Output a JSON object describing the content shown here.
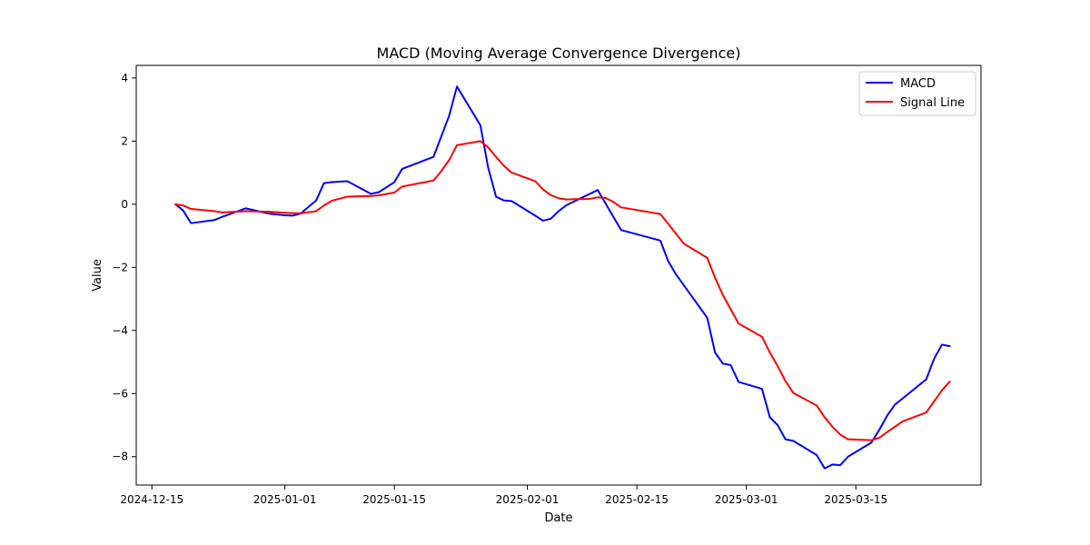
{
  "chart_data": {
    "type": "line",
    "title": "MACD (Moving Average Convergence Divergence)",
    "xlabel": "Date",
    "ylabel": "Value",
    "xlim": [
      "2024-12-13",
      "2025-03-31"
    ],
    "ylim": [
      -8.9,
      4.4
    ],
    "x_ticks": [
      "2024-12-15",
      "2025-01-01",
      "2025-01-15",
      "2025-02-01",
      "2025-02-15",
      "2025-03-01",
      "2025-03-15"
    ],
    "y_ticks": [
      4,
      2,
      0,
      -2,
      -4,
      -6,
      -8
    ],
    "y_tick_labels": [
      "4",
      "2",
      "0",
      "−2",
      "−4",
      "−6",
      "−8"
    ],
    "grid": false,
    "legend_position": "top-right",
    "series": [
      {
        "name": "MACD",
        "color": "#0000ff",
        "points": [
          [
            "2024-12-18",
            0.0
          ],
          [
            "2024-12-19",
            -0.2
          ],
          [
            "2024-12-20",
            -0.6
          ],
          [
            "2024-12-23",
            -0.5
          ],
          [
            "2024-12-24",
            -0.4
          ],
          [
            "2024-12-27",
            -0.13
          ],
          [
            "2024-12-30",
            -0.3
          ],
          [
            "2025-01-01",
            -0.35
          ],
          [
            "2025-01-02",
            -0.36
          ],
          [
            "2025-01-03",
            -0.3
          ],
          [
            "2025-01-05",
            0.12
          ],
          [
            "2025-01-06",
            0.67
          ],
          [
            "2025-01-07",
            0.7
          ],
          [
            "2025-01-09",
            0.73
          ],
          [
            "2025-01-12",
            0.33
          ],
          [
            "2025-01-13",
            0.38
          ],
          [
            "2025-01-15",
            0.7
          ],
          [
            "2025-01-16",
            1.12
          ],
          [
            "2025-01-20",
            1.5
          ],
          [
            "2025-01-22",
            2.8
          ],
          [
            "2025-01-23",
            3.73
          ],
          [
            "2025-01-26",
            2.5
          ],
          [
            "2025-01-27",
            1.15
          ],
          [
            "2025-01-28",
            0.24
          ],
          [
            "2025-01-29",
            0.12
          ],
          [
            "2025-01-30",
            0.1
          ],
          [
            "2025-02-02",
            -0.36
          ],
          [
            "2025-02-03",
            -0.52
          ],
          [
            "2025-02-04",
            -0.46
          ],
          [
            "2025-02-05",
            -0.22
          ],
          [
            "2025-02-06",
            -0.03
          ],
          [
            "2025-02-10",
            0.45
          ],
          [
            "2025-02-12",
            -0.4
          ],
          [
            "2025-02-13",
            -0.82
          ],
          [
            "2025-02-18",
            -1.15
          ],
          [
            "2025-02-19",
            -1.8
          ],
          [
            "2025-02-20",
            -2.22
          ],
          [
            "2025-02-24",
            -3.6
          ],
          [
            "2025-02-25",
            -4.7
          ],
          [
            "2025-02-26",
            -5.05
          ],
          [
            "2025-02-27",
            -5.1
          ],
          [
            "2025-02-28",
            -5.63
          ],
          [
            "2025-03-03",
            -5.85
          ],
          [
            "2025-03-04",
            -6.75
          ],
          [
            "2025-03-05",
            -7.0
          ],
          [
            "2025-03-06",
            -7.45
          ],
          [
            "2025-03-07",
            -7.5
          ],
          [
            "2025-03-10",
            -7.95
          ],
          [
            "2025-03-11",
            -8.37
          ],
          [
            "2025-03-12",
            -8.25
          ],
          [
            "2025-03-13",
            -8.27
          ],
          [
            "2025-03-14",
            -8.0
          ],
          [
            "2025-03-17",
            -7.55
          ],
          [
            "2025-03-18",
            -7.15
          ],
          [
            "2025-03-19",
            -6.7
          ],
          [
            "2025-03-20",
            -6.35
          ],
          [
            "2025-03-21",
            -6.15
          ],
          [
            "2025-03-24",
            -5.55
          ],
          [
            "2025-03-25",
            -4.9
          ],
          [
            "2025-03-26",
            -4.45
          ],
          [
            "2025-03-27",
            -4.5
          ]
        ]
      },
      {
        "name": "Signal Line",
        "color": "#ff0000",
        "points": [
          [
            "2024-12-18",
            0.0
          ],
          [
            "2024-12-19",
            -0.04
          ],
          [
            "2024-12-20",
            -0.15
          ],
          [
            "2024-12-23",
            -0.22
          ],
          [
            "2024-12-24",
            -0.26
          ],
          [
            "2024-12-27",
            -0.22
          ],
          [
            "2024-12-30",
            -0.24
          ],
          [
            "2025-01-01",
            -0.27
          ],
          [
            "2025-01-02",
            -0.28
          ],
          [
            "2025-01-03",
            -0.29
          ],
          [
            "2025-01-05",
            -0.22
          ],
          [
            "2025-01-06",
            -0.04
          ],
          [
            "2025-01-07",
            0.11
          ],
          [
            "2025-01-09",
            0.24
          ],
          [
            "2025-01-12",
            0.26
          ],
          [
            "2025-01-13",
            0.28
          ],
          [
            "2025-01-15",
            0.37
          ],
          [
            "2025-01-16",
            0.56
          ],
          [
            "2025-01-20",
            0.75
          ],
          [
            "2025-01-21",
            1.05
          ],
          [
            "2025-01-22",
            1.4
          ],
          [
            "2025-01-23",
            1.87
          ],
          [
            "2025-01-26",
            2.0
          ],
          [
            "2025-01-27",
            1.8
          ],
          [
            "2025-01-28",
            1.5
          ],
          [
            "2025-01-29",
            1.22
          ],
          [
            "2025-01-30",
            1.0
          ],
          [
            "2025-02-02",
            0.73
          ],
          [
            "2025-02-03",
            0.47
          ],
          [
            "2025-02-04",
            0.29
          ],
          [
            "2025-02-05",
            0.19
          ],
          [
            "2025-02-06",
            0.15
          ],
          [
            "2025-02-07",
            0.16
          ],
          [
            "2025-02-09",
            0.17
          ],
          [
            "2025-02-10",
            0.22
          ],
          [
            "2025-02-11",
            0.2
          ],
          [
            "2025-02-12",
            0.07
          ],
          [
            "2025-02-13",
            -0.1
          ],
          [
            "2025-02-18",
            -0.31
          ],
          [
            "2025-02-19",
            -0.62
          ],
          [
            "2025-02-20",
            -0.93
          ],
          [
            "2025-02-21",
            -1.25
          ],
          [
            "2025-02-24",
            -1.7
          ],
          [
            "2025-02-25",
            -2.33
          ],
          [
            "2025-02-26",
            -2.88
          ],
          [
            "2025-02-28",
            -3.78
          ],
          [
            "2025-03-03",
            -4.2
          ],
          [
            "2025-03-04",
            -4.7
          ],
          [
            "2025-03-05",
            -5.13
          ],
          [
            "2025-03-06",
            -5.6
          ],
          [
            "2025-03-07",
            -5.98
          ],
          [
            "2025-03-10",
            -6.38
          ],
          [
            "2025-03-11",
            -6.75
          ],
          [
            "2025-03-12",
            -7.05
          ],
          [
            "2025-03-13",
            -7.3
          ],
          [
            "2025-03-14",
            -7.45
          ],
          [
            "2025-03-17",
            -7.48
          ],
          [
            "2025-03-18",
            -7.4
          ],
          [
            "2025-03-19",
            -7.22
          ],
          [
            "2025-03-20",
            -7.05
          ],
          [
            "2025-03-21",
            -6.88
          ],
          [
            "2025-03-24",
            -6.6
          ],
          [
            "2025-03-25",
            -6.25
          ],
          [
            "2025-03-26",
            -5.9
          ],
          [
            "2025-03-27",
            -5.62
          ]
        ]
      }
    ]
  }
}
